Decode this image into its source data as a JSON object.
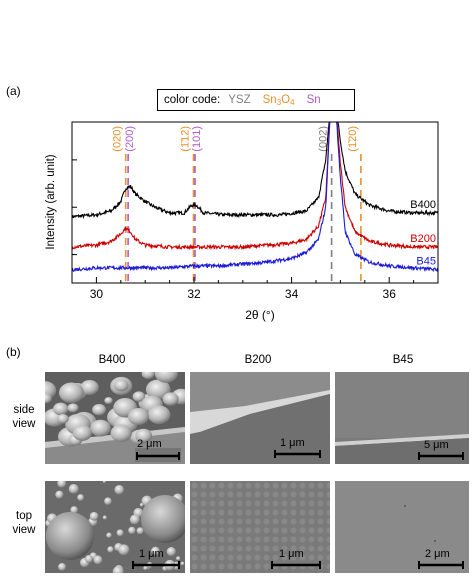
{
  "panel_a": {
    "label": "(a)",
    "legend": {
      "prefix": "color code:",
      "ysz": "YSZ",
      "sn3o4": "Sn",
      "sn3o4_sub1": "3",
      "sn3o4_o": "O",
      "sn3o4_sub2": "4",
      "sn": "Sn"
    },
    "colors": {
      "ysz": "#808080",
      "sn3o4": "#e8912a",
      "sn": "#b05cc8",
      "b400": "#000000",
      "b200": "#cc0000",
      "b45": "#1a1ad6"
    },
    "xlabel": "2θ  (°)",
    "ylabel": "Intensity  (arb. unit)"
  },
  "chart_data": {
    "type": "line",
    "xlim": [
      29.5,
      37.0
    ],
    "x_ticks": [
      30,
      32,
      34,
      36
    ],
    "x_tick_labels": [
      "30",
      "32",
      "34",
      "36"
    ],
    "series": [
      {
        "name": "B400",
        "x": [
          29.5,
          30.0,
          30.3,
          30.5,
          30.6,
          30.7,
          30.8,
          31.0,
          31.2,
          31.5,
          31.8,
          31.95,
          32.05,
          32.2,
          32.6,
          33.2,
          33.8,
          34.3,
          34.55,
          34.7,
          34.8,
          34.9,
          35.0,
          35.1,
          35.3,
          35.6,
          36.0,
          36.5,
          37.0
        ],
        "y": [
          0.5,
          0.51,
          0.53,
          0.58,
          0.65,
          0.66,
          0.62,
          0.58,
          0.55,
          0.52,
          0.52,
          0.56,
          0.56,
          0.52,
          0.51,
          0.51,
          0.51,
          0.53,
          0.6,
          0.8,
          1.1,
          1.1,
          0.9,
          0.74,
          0.62,
          0.56,
          0.53,
          0.52,
          0.52
        ]
      },
      {
        "name": "B200",
        "x": [
          29.5,
          30.0,
          30.3,
          30.5,
          30.6,
          30.7,
          30.8,
          31.0,
          31.5,
          32.0,
          32.5,
          33.0,
          33.5,
          34.0,
          34.3,
          34.55,
          34.7,
          34.8,
          34.9,
          35.0,
          35.1,
          35.3,
          35.6,
          36.0,
          36.5,
          37.0
        ],
        "y": [
          0.34,
          0.35,
          0.37,
          0.41,
          0.44,
          0.42,
          0.38,
          0.35,
          0.34,
          0.34,
          0.34,
          0.34,
          0.35,
          0.36,
          0.38,
          0.45,
          0.6,
          1.1,
          1.1,
          0.78,
          0.55,
          0.42,
          0.37,
          0.35,
          0.34,
          0.34
        ]
      },
      {
        "name": "B45",
        "x": [
          29.5,
          30.0,
          30.5,
          31.0,
          31.5,
          32.0,
          32.5,
          33.0,
          33.5,
          34.0,
          34.3,
          34.55,
          34.7,
          34.8,
          34.9,
          35.0,
          35.1,
          35.3,
          35.6,
          36.0,
          36.5,
          37.0
        ],
        "y": [
          0.22,
          0.23,
          0.23,
          0.23,
          0.23,
          0.24,
          0.24,
          0.25,
          0.26,
          0.28,
          0.31,
          0.38,
          0.55,
          1.1,
          1.1,
          0.7,
          0.42,
          0.3,
          0.26,
          0.24,
          0.23,
          0.22
        ]
      }
    ],
    "reference_lines": [
      {
        "label": "(020)",
        "x": 30.6,
        "phase": "Sn3O4"
      },
      {
        "label": "(200)",
        "x": 30.65,
        "phase": "Sn"
      },
      {
        "label": "(1̄12)",
        "x": 31.99,
        "phase": "Sn3O4"
      },
      {
        "label": "(101)",
        "x": 32.02,
        "phase": "Sn"
      },
      {
        "label": "(002)",
        "x": 34.82,
        "phase": "YSZ"
      },
      {
        "label": "(1̄20)",
        "x": 35.42,
        "phase": "Sn3O4"
      }
    ],
    "xlabel": "2θ  (°)",
    "ylabel": "Intensity  (arb. unit)"
  },
  "panel_b": {
    "label": "(b)",
    "columns": [
      "B400",
      "B200",
      "B45"
    ],
    "rows": [
      {
        "line1": "side",
        "line2": "view"
      },
      {
        "line1": "top",
        "line2": "view"
      }
    ],
    "scale_bars": [
      [
        "2 μm",
        "1 μm",
        "5 μm"
      ],
      [
        "1 μm",
        "1 μm",
        "2 μm"
      ]
    ]
  }
}
